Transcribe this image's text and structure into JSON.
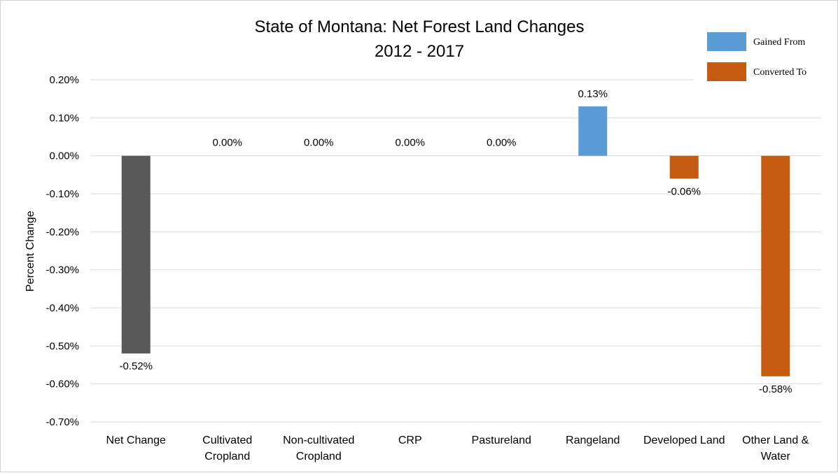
{
  "chart_data": {
    "type": "bar",
    "title": "State of Montana: Net Forest Land Changes",
    "subtitle": "2012 - 2017",
    "xlabel": "",
    "ylabel": "Percent Change",
    "ylim": [
      -0.7,
      0.2
    ],
    "yticks": [
      0.2,
      0.1,
      0.0,
      -0.1,
      -0.2,
      -0.3,
      -0.4,
      -0.5,
      -0.6,
      -0.7
    ],
    "ytick_labels": [
      "0.20%",
      "0.10%",
      "0.00%",
      "-0.10%",
      "-0.20%",
      "-0.30%",
      "-0.40%",
      "-0.50%",
      "-0.60%",
      "-0.70%"
    ],
    "grid": true,
    "legend_position": "top-right",
    "categories": [
      [
        "Net Change"
      ],
      [
        "Cultivated",
        "Cropland"
      ],
      [
        "Non-cultivated",
        "Cropland"
      ],
      [
        "CRP"
      ],
      [
        "Pastureland"
      ],
      [
        "Rangeland"
      ],
      [
        "Developed Land"
      ],
      [
        "Other Land &",
        "Water"
      ]
    ],
    "values": [
      -0.52,
      0.0,
      0.0,
      0.0,
      0.0,
      0.13,
      -0.06,
      -0.58
    ],
    "value_labels": [
      "-0.52%",
      "0.00%",
      "0.00%",
      "0.00%",
      "0.00%",
      "0.13%",
      "-0.06%",
      "-0.58%"
    ],
    "bar_groups": [
      "net",
      "converted",
      "converted",
      "converted",
      "converted",
      "gained",
      "converted",
      "converted"
    ],
    "legend": [
      {
        "key": "gained",
        "label": "Gained From",
        "color": "#5b9bd5"
      },
      {
        "key": "converted",
        "label": "Converted To",
        "color": "#c55a11"
      }
    ],
    "colors": {
      "net": "#595959",
      "gained": "#5b9bd5",
      "converted": "#c55a11",
      "grid": "#d9d9d9"
    }
  }
}
